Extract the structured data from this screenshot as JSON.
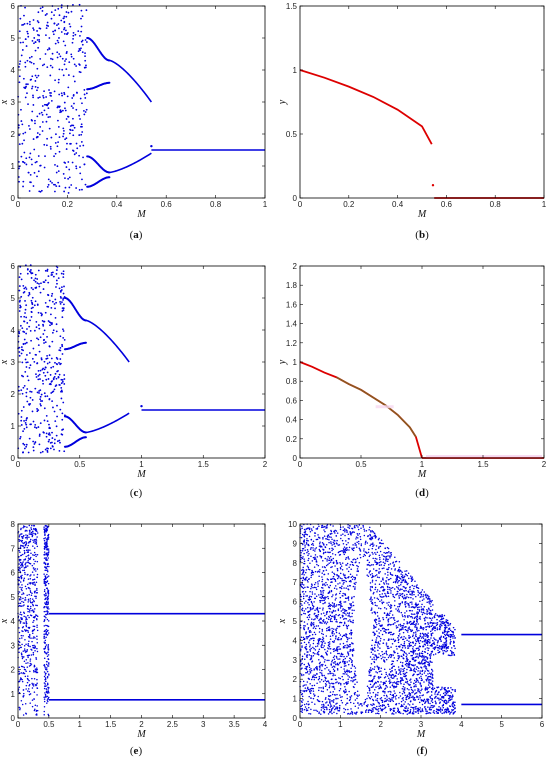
{
  "panels": [
    {
      "caption_letter": "a",
      "chart_data": {
        "type": "scatter",
        "xlabel": "M",
        "ylabel": "x",
        "xlim": [
          0,
          1
        ],
        "ylim": [
          0,
          6
        ],
        "xticks": [
          "0",
          "0.2",
          "0.4",
          "0.6",
          "0.8",
          "1"
        ],
        "yticks": [
          "0",
          "1",
          "2",
          "3",
          "4",
          "5",
          "6"
        ],
        "series": [
          {
            "color": "#0000dd",
            "kind": "bifurcation",
            "x_chaos_end": 0.28,
            "x_period4_end": 0.37,
            "x_period2_end": 0.54,
            "x_fixed_start": 0.54,
            "fixed_value": 1.5
          }
        ]
      }
    },
    {
      "caption_letter": "b",
      "chart_data": {
        "type": "line",
        "xlabel": "M",
        "ylabel": "y",
        "xlim": [
          0,
          1
        ],
        "ylim": [
          0,
          1.5
        ],
        "xticks": [
          "0",
          "0.2",
          "0.4",
          "0.6",
          "0.8",
          "1"
        ],
        "yticks": [
          "0",
          "0.5",
          "1",
          "1.5"
        ],
        "series": [
          {
            "color": "#dd0000",
            "x": [
              0,
              0.1,
              0.2,
              0.3,
              0.4,
              0.5,
              0.54
            ],
            "y": [
              1.0,
              0.94,
              0.87,
              0.79,
              0.69,
              0.56,
              0.42
            ],
            "x_jump": 0.545,
            "y_jump": 0.1,
            "zero_from": 0.55
          }
        ]
      }
    },
    {
      "caption_letter": "c",
      "chart_data": {
        "type": "scatter",
        "xlabel": "M",
        "ylabel": "x",
        "xlim": [
          0,
          2
        ],
        "ylim": [
          0,
          6
        ],
        "xticks": [
          "0",
          "0.5",
          "1",
          "1.5",
          "2"
        ],
        "yticks": [
          "0",
          "1",
          "2",
          "3",
          "4",
          "5",
          "6"
        ],
        "series": [
          {
            "color": "#0000dd",
            "kind": "bifurcation",
            "x_chaos_end": 0.38,
            "x_period4_end": 0.55,
            "x_period2_end": 0.9,
            "x_fixed_start": 1.0,
            "fixed_value": 1.5
          }
        ]
      }
    },
    {
      "caption_letter": "d",
      "chart_data": {
        "type": "line",
        "xlabel": "M",
        "ylabel": "y",
        "xlim": [
          0,
          2
        ],
        "ylim": [
          0,
          2
        ],
        "xticks": [
          "0",
          "0.5",
          "1",
          "1.5",
          "2"
        ],
        "yticks": [
          "0",
          "0.2",
          "0.4",
          "0.6",
          "0.8",
          "1",
          "1.2",
          "1.4",
          "1.6",
          "1.8",
          "2"
        ],
        "series": [
          {
            "color": "#dd0000",
            "overlay_color": "#8a5a20",
            "x": [
              0,
              0.1,
              0.2,
              0.3,
              0.4,
              0.5,
              0.6,
              0.7,
              0.8,
              0.9,
              0.95,
              1.0
            ],
            "y": [
              1.0,
              0.95,
              0.89,
              0.84,
              0.77,
              0.71,
              0.63,
              0.55,
              0.45,
              0.32,
              0.22,
              0.0
            ],
            "zero_from": 1.0
          }
        ]
      }
    },
    {
      "caption_letter": "e",
      "chart_data": {
        "type": "scatter",
        "xlabel": "M",
        "ylabel": "x",
        "xlim": [
          0,
          4
        ],
        "ylim": [
          0,
          8
        ],
        "xticks": [
          "0",
          "0.5",
          "1",
          "1.5",
          "2",
          "2.5",
          "3",
          "3.5",
          "4"
        ],
        "yticks": [
          "0",
          "1",
          "2",
          "3",
          "4",
          "5",
          "6",
          "7",
          "8"
        ],
        "series": [
          {
            "color": "#0000dd",
            "kind": "chaos-band",
            "x_chaos_end": 0.5,
            "branch_values": [
              4.3,
              0.75
            ],
            "x_branch_start": 0.5
          }
        ]
      }
    },
    {
      "caption_letter": "f",
      "chart_data": {
        "type": "scatter",
        "xlabel": "M",
        "ylabel": "x",
        "xlim": [
          0,
          6
        ],
        "ylim": [
          0,
          10
        ],
        "xticks": [
          "0",
          "1",
          "2",
          "3",
          "4",
          "5",
          "6"
        ],
        "yticks": [
          "0",
          "1",
          "2",
          "3",
          "4",
          "5",
          "6",
          "7",
          "8",
          "9",
          "10"
        ],
        "series": [
          {
            "color": "#0000dd",
            "kind": "wedge",
            "window_x": [
              1.3,
              1.8
            ],
            "x_period4_start": 3.3,
            "x_period2_start": 4.0,
            "branch_values": [
              4.3,
              0.7
            ]
          }
        ]
      }
    }
  ]
}
